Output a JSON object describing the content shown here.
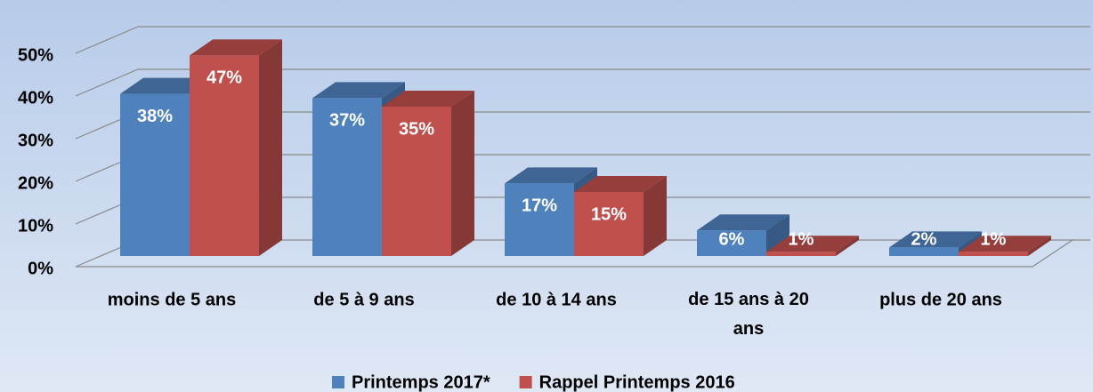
{
  "chart_data": {
    "type": "bar3d",
    "categories": [
      "moins de 5 ans",
      "de 5 à 9 ans",
      "de 10 à 14 ans",
      "de 15 ans à 20 ans",
      "plus de 20 ans"
    ],
    "series": [
      {
        "name": "Printemps 2017*",
        "color": "#4f81bd",
        "values": [
          38,
          37,
          17,
          6,
          2
        ],
        "value_labels": [
          "38%",
          "37%",
          "17%",
          "6%",
          "2%"
        ]
      },
      {
        "name": "Rappel Printemps 2016",
        "color": "#c0504d",
        "values": [
          47,
          35,
          15,
          1,
          1
        ],
        "value_labels": [
          "47%",
          "35%",
          "15%",
          "1%",
          "1%"
        ]
      }
    ],
    "ylim": [
      0,
      50
    ],
    "yticks": [
      {
        "value": 0,
        "label": "0%"
      },
      {
        "value": 10,
        "label": "10%"
      },
      {
        "value": 20,
        "label": "20%"
      },
      {
        "value": 30,
        "label": "30%"
      },
      {
        "value": 40,
        "label": "40%"
      },
      {
        "value": 50,
        "label": "50%"
      }
    ],
    "grid": true,
    "legend": "bottom"
  }
}
